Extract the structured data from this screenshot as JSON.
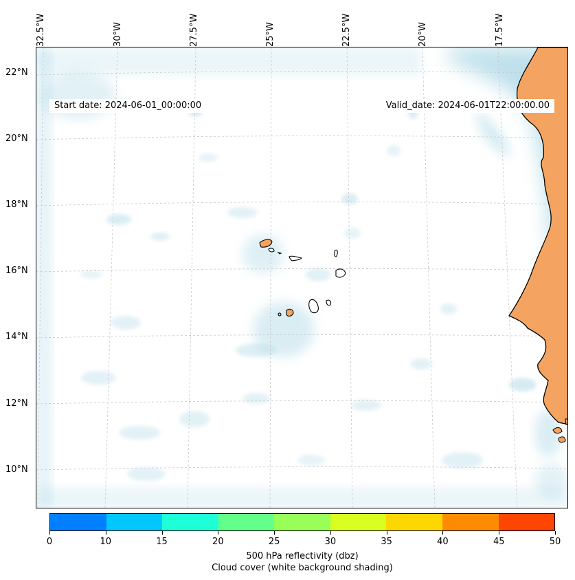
{
  "map": {
    "lon_labels": [
      "32.5°W",
      "30°W",
      "27.5°W",
      "25°W",
      "22.5°W",
      "20°W",
      "17.5°W"
    ],
    "lat_labels": [
      "22°N",
      "20°N",
      "18°N",
      "16°N",
      "14°N",
      "12°N",
      "10°N"
    ],
    "start_date": "Start date: 2024-06-01_00:00:00",
    "valid_date": "Valid_date: 2024-06-01T22:00:00.00",
    "land_color": "#f4a460",
    "cloud_color": "#add8e6",
    "coastline_color": "#000000",
    "gridline_style": "dashed-grey"
  },
  "colorbar": {
    "ticks": [
      "0",
      "10",
      "15",
      "20",
      "25",
      "30",
      "35",
      "40",
      "45",
      "50"
    ],
    "colors": [
      "#0080ff",
      "#00c8ff",
      "#1effd8",
      "#62ff8a",
      "#98ff58",
      "#d8ff20",
      "#ffd700",
      "#ff8c00",
      "#ff4500"
    ],
    "title_line1": "500 hPa reflectivity (dbz)",
    "title_line2": "Cloud cover (white background shading)"
  }
}
